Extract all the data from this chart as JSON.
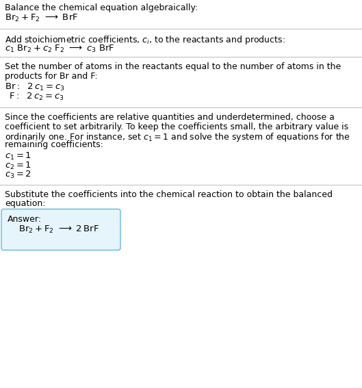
{
  "title_line1": "Balance the chemical equation algebraically:",
  "section2_header": "Add stoichiometric coefficients, $c_i$, to the reactants and products:",
  "section3_header1": "Set the number of atoms in the reactants equal to the number of atoms in the",
  "section3_header2": "products for Br and F:",
  "section4_header1": "Since the coefficients are relative quantities and underdetermined, choose a",
  "section4_header2": "coefficient to set arbitrarily. To keep the coefficients small, the arbitrary value is",
  "section4_header3": "ordinarily one. For instance, set $c_1 = 1$ and solve the system of equations for the",
  "section4_header4": "remaining coefficients:",
  "section5_header1": "Substitute the coefficients into the chemical reaction to obtain the balanced",
  "section5_header2": "equation:",
  "answer_label": "Answer:",
  "bg_color": "#ffffff",
  "line_color": "#bbbbbb",
  "text_color": "#000000",
  "box_edge_color": "#60b8e0",
  "box_face_color": "#e6f4fb"
}
